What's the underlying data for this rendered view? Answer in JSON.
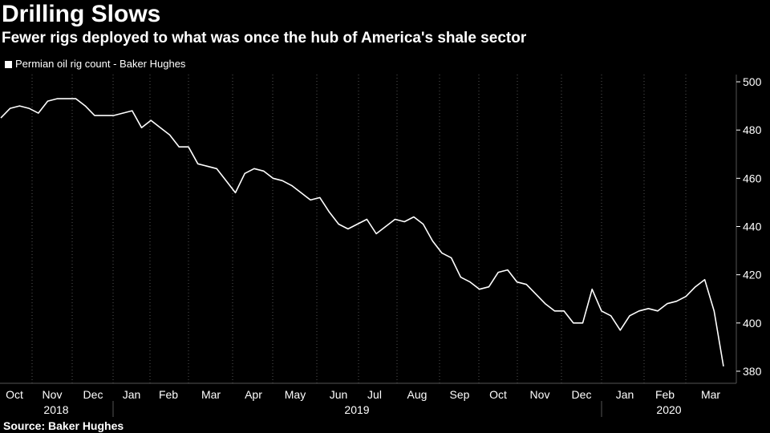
{
  "header": {
    "title": "Drilling Slows",
    "subtitle": "Fewer rigs deployed to what was once the hub of America's shale sector"
  },
  "footer": {
    "source": "Source: Baker Hughes"
  },
  "colors": {
    "background": "#000000",
    "line": "#ffffff",
    "grid": "#555555",
    "text": "#ffffff"
  },
  "chart_data": {
    "type": "line",
    "title": "Drilling Slows",
    "subtitle": "Fewer rigs deployed to what was once the hub of America's shale sector",
    "xlabel": "",
    "ylabel": "",
    "ylim": [
      375,
      503
    ],
    "y_axis_position": "right",
    "y_ticks": [
      380,
      400,
      420,
      440,
      460,
      480,
      500
    ],
    "grid": "vertical dotted",
    "legend_position": "top-left",
    "month_ticks": [
      "Oct",
      "Nov",
      "Dec",
      "Jan",
      "Feb",
      "Mar",
      "Apr",
      "May",
      "Jun",
      "Jul",
      "Aug",
      "Sep",
      "Oct",
      "Nov",
      "Dec",
      "Jan",
      "Feb",
      "Mar"
    ],
    "year_labels": [
      "2018",
      "2019",
      "2020"
    ],
    "series": [
      {
        "name": "Permian oil rig count - Baker Hughes",
        "values": [
          485,
          489,
          490,
          489,
          487,
          492,
          493,
          493,
          493,
          490,
          486,
          486,
          486,
          487,
          488,
          481,
          484,
          481,
          478,
          473,
          473,
          466,
          465,
          464,
          459,
          454,
          462,
          464,
          463,
          460,
          459,
          457,
          454,
          451,
          452,
          446,
          441,
          439,
          441,
          443,
          437,
          440,
          443,
          442,
          444,
          441,
          434,
          429,
          427,
          419,
          417,
          414,
          415,
          421,
          422,
          417,
          416,
          412,
          408,
          405,
          405,
          400,
          400,
          414,
          405,
          403,
          397,
          403,
          405,
          406,
          405,
          408,
          409,
          411,
          415,
          418,
          405,
          382
        ]
      }
    ]
  }
}
